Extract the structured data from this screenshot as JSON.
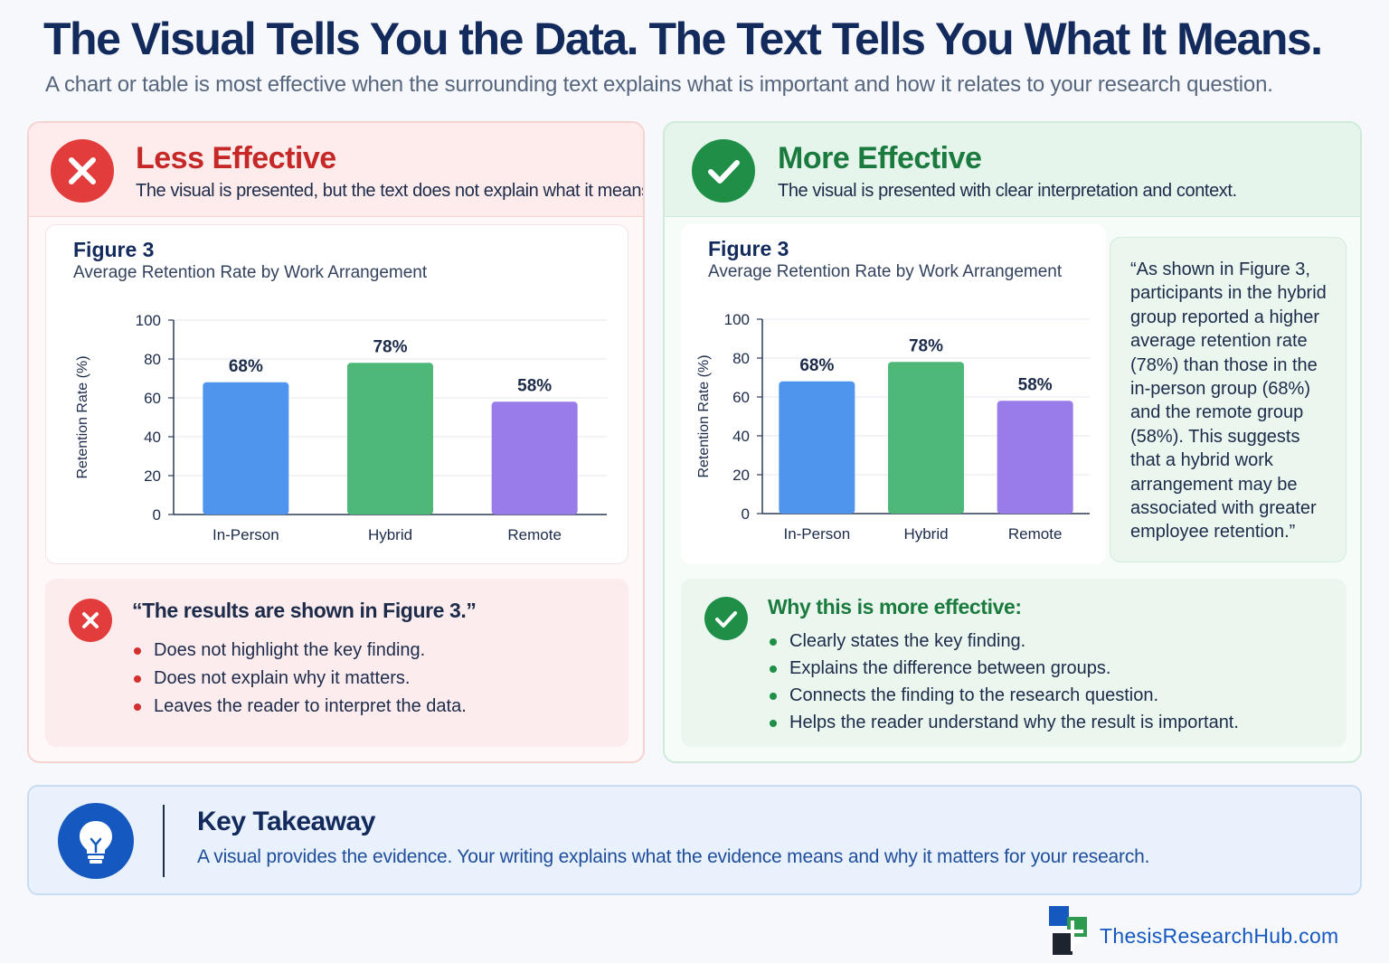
{
  "header": {
    "title": "The Visual Tells You the Data. The Text Tells You What It Means.",
    "subtitle": "A chart or table is most effective when the surrounding text explains what is important and how it relates to your research question."
  },
  "left_panel": {
    "heading": "Less Effective",
    "subheading": "The visual is presented, but the text does not explain what it means.",
    "icon": "x-icon",
    "figure_label": "Figure 3",
    "figure_caption": "Average Retention Rate by Work Arrangement",
    "note_title": "“The results are shown in Figure 3.”",
    "bullets": [
      "Does not highlight the key finding.",
      "Does not explain why it matters.",
      "Leaves the reader to interpret the data."
    ]
  },
  "right_panel": {
    "heading": "More Effective",
    "subheading": "The visual is presented with clear interpretation and context.",
    "icon": "check-icon",
    "figure_label": "Figure 3",
    "figure_caption": "Average Retention Rate by Work Arrangement",
    "quote_lines": [
      "“As shown in Figure 3,",
      "participants in the hybrid",
      "group reported a higher",
      "average retention rate",
      "(78%) than those in the",
      "in-person group (68%)",
      "and the remote group",
      "(58%). This suggests",
      "that a hybrid work",
      "arrangement may be",
      "associated with greater",
      "employee retention.”"
    ],
    "note_title": "Why this is more effective:",
    "bullets": [
      "Clearly states the key finding.",
      "Explains the difference between groups.",
      "Connects the finding to the research question.",
      "Helps the reader understand why the result is important."
    ]
  },
  "takeaway": {
    "title": "Key Takeaway",
    "text": "A visual provides the evidence. Your writing explains what the evidence means and why it matters for your research.",
    "icon": "lightbulb-icon"
  },
  "footer": {
    "brand": "ThesisResearchHub.com",
    "icon": "logo-icon"
  },
  "colors": {
    "negative": "#e23c3c",
    "positive": "#1f8f48",
    "accent": "#1558c0",
    "in_person_bar": "#4f95ee",
    "hybrid_bar": "#4db878",
    "remote_bar": "#9a7bea"
  },
  "chart_data": [
    {
      "type": "bar",
      "title": "Average Retention Rate by Work Arrangement",
      "xlabel": "",
      "ylabel": "Retention Rate (%)",
      "ylim": [
        0,
        100
      ],
      "yticks": [
        0,
        20,
        40,
        60,
        80,
        100
      ],
      "grid": true,
      "categories": [
        "In-Person",
        "Hybrid",
        "Remote"
      ],
      "values": [
        68,
        78,
        58
      ],
      "value_labels": [
        "68%",
        "78%",
        "58%"
      ]
    },
    {
      "type": "bar",
      "title": "Average Retention Rate by Work Arrangement",
      "xlabel": "",
      "ylabel": "Retention Rate (%)",
      "ylim": [
        0,
        100
      ],
      "yticks": [
        0,
        20,
        40,
        60,
        80,
        100
      ],
      "grid": true,
      "categories": [
        "In-Person",
        "Hybrid",
        "Remote"
      ],
      "values": [
        68,
        78,
        58
      ],
      "value_labels": [
        "68%",
        "78%",
        "58%"
      ]
    }
  ]
}
